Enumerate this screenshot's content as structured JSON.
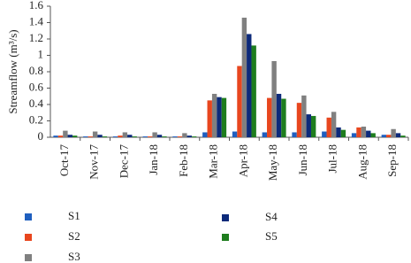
{
  "chart_data": {
    "type": "bar",
    "y_label": "Streamflow (m³/s)",
    "categories": [
      "Oct-17",
      "Nov-17",
      "Dec-17",
      "Jan-18",
      "Feb-18",
      "Mar-18",
      "Apr-18",
      "May-18",
      "Jun-18",
      "Jul-18",
      "Aug-18",
      "Sep-18"
    ],
    "series": [
      {
        "name": "S1",
        "color": "#1f5fbf",
        "values": [
          0.02,
          0.01,
          0.01,
          0.01,
          0.01,
          0.06,
          0.07,
          0.06,
          0.06,
          0.07,
          0.05,
          0.03
        ]
      },
      {
        "name": "S2",
        "color": "#e8461e",
        "values": [
          0.02,
          0.01,
          0.02,
          0.01,
          0.01,
          0.45,
          0.87,
          0.48,
          0.42,
          0.24,
          0.12,
          0.03
        ]
      },
      {
        "name": "S3",
        "color": "#808080",
        "values": [
          0.08,
          0.07,
          0.06,
          0.06,
          0.05,
          0.53,
          1.46,
          0.93,
          0.51,
          0.31,
          0.13,
          0.1
        ]
      },
      {
        "name": "S4",
        "color": "#0d2a7a",
        "values": [
          0.03,
          0.03,
          0.03,
          0.03,
          0.02,
          0.49,
          1.26,
          0.53,
          0.28,
          0.12,
          0.08,
          0.05
        ]
      },
      {
        "name": "S5",
        "color": "#1e7d1e",
        "values": [
          0.02,
          0.01,
          0.01,
          0.01,
          0.01,
          0.48,
          1.12,
          0.47,
          0.26,
          0.09,
          0.05,
          0.02
        ]
      }
    ],
    "ylim": [
      0,
      1.6
    ],
    "yticks": [
      0,
      0.2,
      0.4,
      0.6,
      0.8,
      1,
      1.2,
      1.4,
      1.6
    ]
  }
}
